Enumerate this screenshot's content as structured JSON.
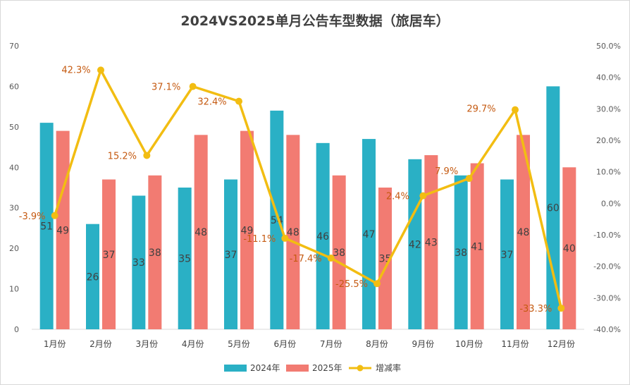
{
  "chart_data": {
    "type": "bar",
    "title": "2024VS2025单月公告车型数据（旅居车）",
    "categories": [
      "1月份",
      "2月份",
      "3月份",
      "4月份",
      "5月份",
      "6月份",
      "7月份",
      "8月份",
      "9月份",
      "10月份",
      "11月份",
      "12月份"
    ],
    "series": [
      {
        "name": "2024年",
        "type": "bar",
        "axis": "left",
        "color": "#2ab0c5",
        "values": [
          51,
          26,
          33,
          35,
          37,
          54,
          46,
          47,
          42,
          38,
          37,
          60
        ]
      },
      {
        "name": "2025年",
        "type": "bar",
        "axis": "left",
        "color": "#f27b72",
        "values": [
          49,
          37,
          38,
          48,
          49,
          48,
          38,
          35,
          43,
          41,
          48,
          40
        ]
      },
      {
        "name": "增减率",
        "type": "line",
        "axis": "right",
        "color": "#f2bd12",
        "values": [
          -3.9,
          42.3,
          15.2,
          37.1,
          32.4,
          -11.1,
          -17.4,
          -25.5,
          2.4,
          7.9,
          29.7,
          -33.3
        ],
        "labels": [
          "-3.9%",
          "42.3%",
          "15.2%",
          "37.1%",
          "32.4%",
          "-11.1%",
          "-17.4%",
          "-25.5%",
          "2.4%",
          "7.9%",
          "29.7%",
          "-33.3%"
        ]
      }
    ],
    "y_left": {
      "min": 0,
      "max": 70,
      "step": 10,
      "ticks": [
        "0",
        "10",
        "20",
        "30",
        "40",
        "50",
        "60",
        "70"
      ]
    },
    "y_right": {
      "min": -40,
      "max": 50,
      "step": 10,
      "ticks": [
        "-40.0%",
        "-30.0%",
        "-20.0%",
        "-10.0%",
        "0.0%",
        "10.0%",
        "20.0%",
        "30.0%",
        "40.0%",
        "50.0%"
      ]
    },
    "legend_position": "bottom",
    "rate_label_color": "#c55a11",
    "grid": false
  }
}
